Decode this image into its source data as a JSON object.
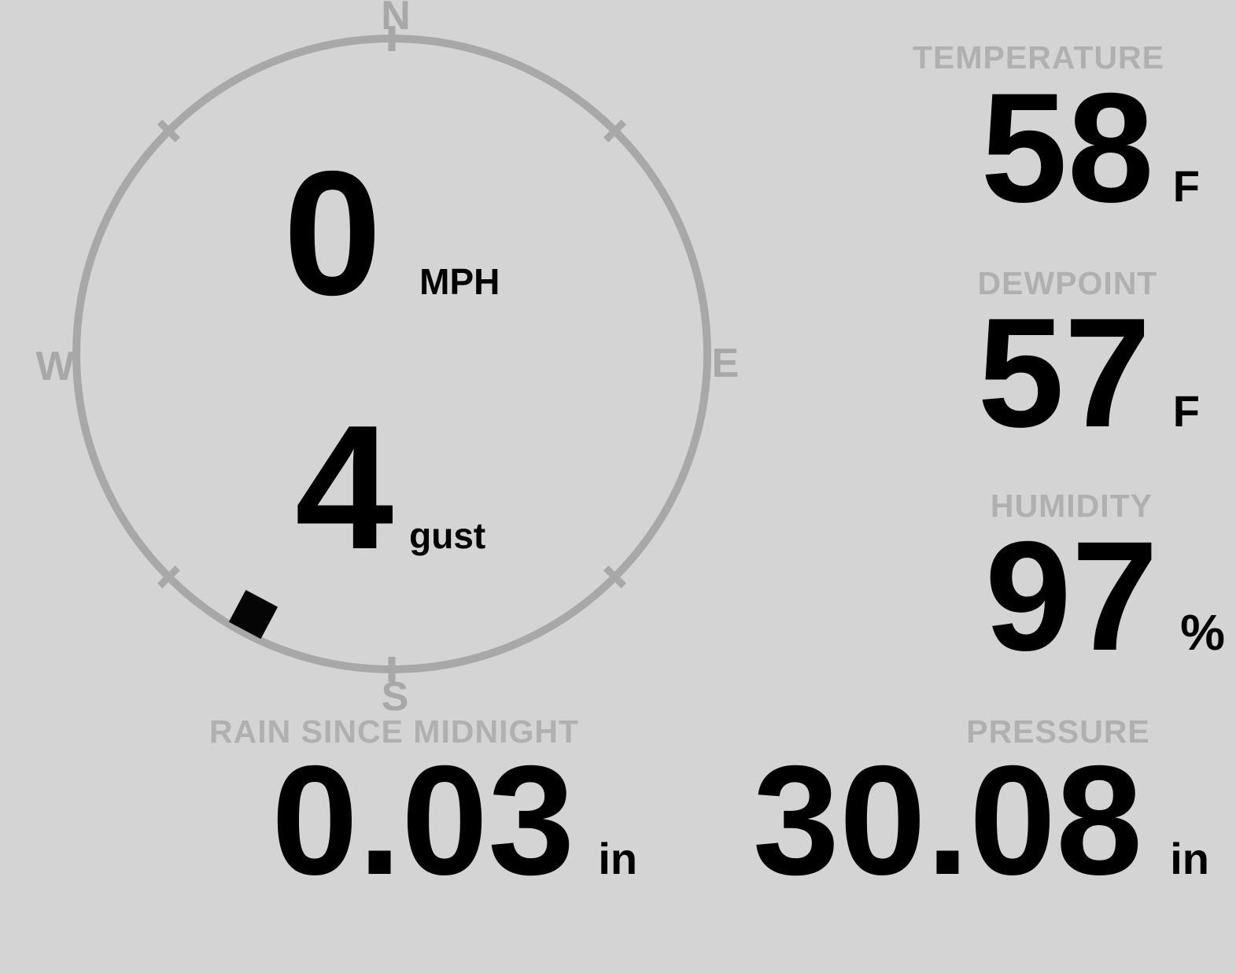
{
  "theme": {
    "background": "#d4d4d4",
    "dial_color": "#a8a8a8",
    "label_color": "#b0b0b0",
    "value_color": "#000000",
    "marker_color": "#050505"
  },
  "wind_compass": {
    "labels": {
      "north": "N",
      "east": "E",
      "south": "S",
      "west": "W"
    },
    "speed": {
      "value": "0",
      "unit": "MPH"
    },
    "gust": {
      "value": "4",
      "unit": "gust"
    },
    "direction_deg": 208,
    "tick_angles_deg": [
      0,
      45,
      135,
      180,
      225,
      315
    ]
  },
  "metrics": {
    "temperature": {
      "label": "TEMPERATURE",
      "value": "58",
      "unit": "F"
    },
    "dewpoint": {
      "label": "DEWPOINT",
      "value": "57",
      "unit": "F"
    },
    "humidity": {
      "label": "HUMIDITY",
      "value": "97",
      "unit": "%"
    },
    "rain_since_midnight": {
      "label": "RAIN SINCE MIDNIGHT",
      "value": "0.03",
      "unit": "in"
    },
    "pressure": {
      "label": "PRESSURE",
      "value": "30.08",
      "unit": "in"
    }
  }
}
